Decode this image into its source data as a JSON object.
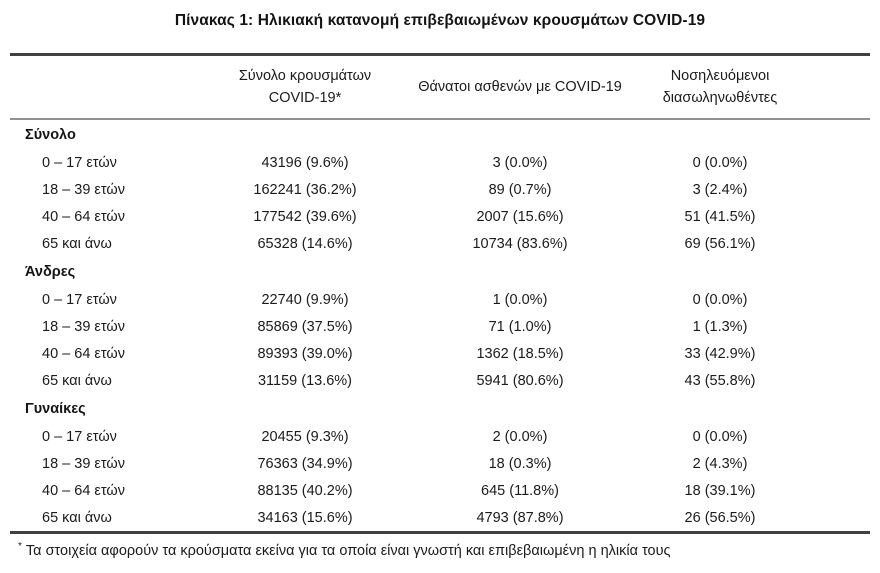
{
  "title": "Πίνακας 1: Ηλικιακή κατανομή επιβεβαιωμένων κρουσμάτων COVID-19",
  "table": {
    "col_headers": [
      "Σύνολο κρουσμάτων COVID-19*",
      "Θάνατοι ασθενών με COVID-19",
      "Νοσηλευόμενοι διασωληνωθέντες"
    ],
    "sections": [
      {
        "label": "Σύνολο",
        "rows": [
          {
            "label": "0 – 17 ετών",
            "cells": [
              "43196 (9.6%)",
              "3 (0.0%)",
              "0 (0.0%)"
            ]
          },
          {
            "label": "18 – 39 ετών",
            "cells": [
              "162241 (36.2%)",
              "89 (0.7%)",
              "3 (2.4%)"
            ]
          },
          {
            "label": "40 – 64 ετών",
            "cells": [
              "177542 (39.6%)",
              "2007 (15.6%)",
              "51 (41.5%)"
            ]
          },
          {
            "label": "65 και άνω",
            "cells": [
              "65328 (14.6%)",
              "10734 (83.6%)",
              "69 (56.1%)"
            ]
          }
        ]
      },
      {
        "label": "Άνδρες",
        "rows": [
          {
            "label": "0 – 17 ετών",
            "cells": [
              "22740 (9.9%)",
              "1 (0.0%)",
              "0 (0.0%)"
            ]
          },
          {
            "label": "18 – 39 ετών",
            "cells": [
              "85869 (37.5%)",
              "71 (1.0%)",
              "1 (1.3%)"
            ]
          },
          {
            "label": "40 – 64 ετών",
            "cells": [
              "89393 (39.0%)",
              "1362 (18.5%)",
              "33 (42.9%)"
            ]
          },
          {
            "label": "65 και άνω",
            "cells": [
              "31159 (13.6%)",
              "5941 (80.6%)",
              "43 (55.8%)"
            ]
          }
        ]
      },
      {
        "label": "Γυναίκες",
        "rows": [
          {
            "label": "0 – 17 ετών",
            "cells": [
              "20455 (9.3%)",
              "2 (0.0%)",
              "0 (0.0%)"
            ]
          },
          {
            "label": "18 – 39 ετών",
            "cells": [
              "76363 (34.9%)",
              "18 (0.3%)",
              "2 (4.3%)"
            ]
          },
          {
            "label": "40 – 64 ετών",
            "cells": [
              "88135 (40.2%)",
              "645 (11.8%)",
              "18 (39.1%)"
            ]
          },
          {
            "label": "65 και άνω",
            "cells": [
              "34163 (15.6%)",
              "4793 (87.8%)",
              "26 (56.5%)"
            ]
          }
        ]
      }
    ]
  },
  "footnote": {
    "marker": "*",
    "text": "Τα στοιχεία αφορούν τα κρούσματα εκείνα για τα οποία είναι γνωστή και επιβεβαιωμένη η ηλικία τους"
  },
  "colors": {
    "rule_dark": "#414141",
    "rule_mid": "#919191",
    "text": "#1b1b1b"
  }
}
